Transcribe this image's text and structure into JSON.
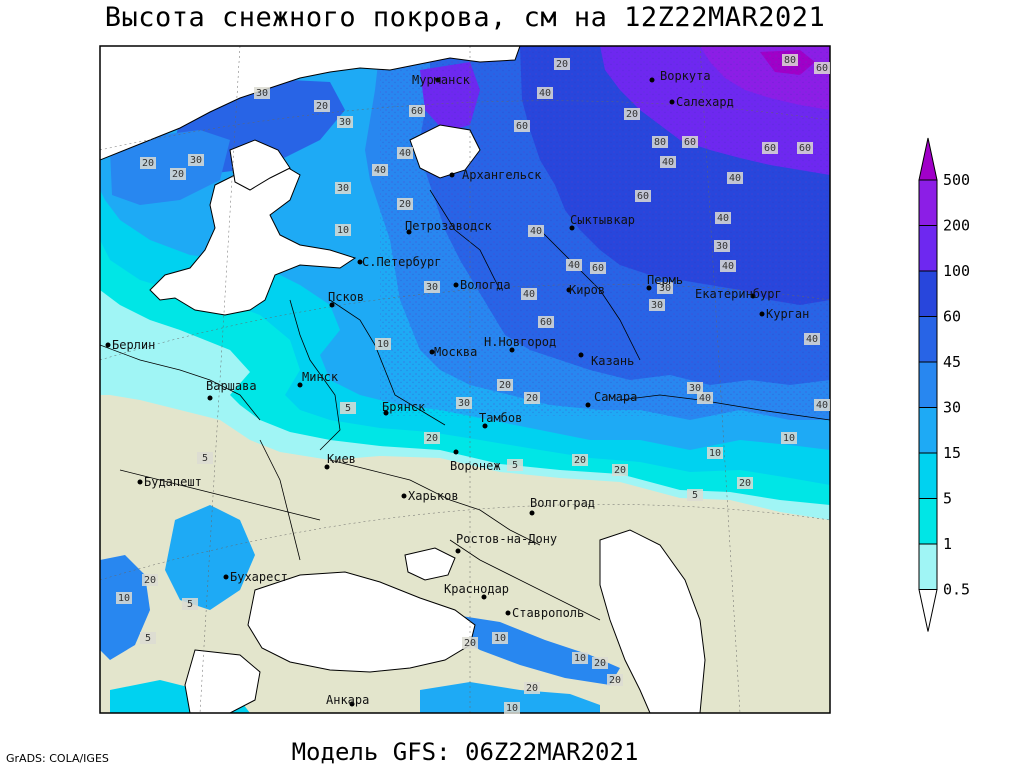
{
  "title": "Высота снежного покрова, см на 12Z22MAR2021",
  "subtitle": "Модель GFS: 06Z22MAR2021",
  "credit": "GrADS: COLA/IGES",
  "legend": {
    "levels": [
      "500",
      "200",
      "100",
      "60",
      "45",
      "30",
      "15",
      "5",
      "1",
      "0.5"
    ],
    "colors": [
      "#a000c8",
      "#8c1ee6",
      "#6e28f0",
      "#2846dc",
      "#2864e6",
      "#2887f0",
      "#1eaaf5",
      "#00d2f0",
      "#00e6e6",
      "#a0f5f5"
    ]
  },
  "cities": [
    {
      "name": "Мурманск"
    },
    {
      "name": "Воркута"
    },
    {
      "name": "Салехард"
    },
    {
      "name": "Архангельск"
    },
    {
      "name": "Петрозаводск"
    },
    {
      "name": "Сыктывкар"
    },
    {
      "name": "С.Петербург"
    },
    {
      "name": "Вологда"
    },
    {
      "name": "Киров"
    },
    {
      "name": "Пермь"
    },
    {
      "name": "Екатеринбург"
    },
    {
      "name": "Курган"
    },
    {
      "name": "Псков"
    },
    {
      "name": "Н.Новгород"
    },
    {
      "name": "Берлин"
    },
    {
      "name": "Москва"
    },
    {
      "name": "Казань"
    },
    {
      "name": "Варшава"
    },
    {
      "name": "Минск"
    },
    {
      "name": "Брянск"
    },
    {
      "name": "Тамбов"
    },
    {
      "name": "Самара"
    },
    {
      "name": "Воронеж"
    },
    {
      "name": "Киев"
    },
    {
      "name": "Будапешт"
    },
    {
      "name": "Харьков"
    },
    {
      "name": "Волгоград"
    },
    {
      "name": "Ростов-на-Дону"
    },
    {
      "name": "Бухарест"
    },
    {
      "name": "Краснодар"
    },
    {
      "name": "Ставрополь"
    },
    {
      "name": "Анкара"
    }
  ],
  "contour_labels": [
    "80",
    "60",
    "20",
    "60",
    "40",
    "20",
    "60",
    "30",
    "20",
    "40",
    "40",
    "30",
    "20",
    "30",
    "20",
    "30",
    "40",
    "60",
    "80",
    "60",
    "60",
    "40",
    "60",
    "40",
    "20",
    "10",
    "40",
    "30",
    "40",
    "60",
    "40",
    "30",
    "40",
    "60",
    "30",
    "30",
    "40",
    "10",
    "30",
    "20",
    "20",
    "40",
    "30",
    "40",
    "10",
    "5",
    "20",
    "10",
    "20",
    "5",
    "5",
    "20",
    "20",
    "5",
    "5",
    "20",
    "10",
    "5",
    "10",
    "20",
    "20",
    "10",
    "20",
    "10",
    "20"
  ]
}
